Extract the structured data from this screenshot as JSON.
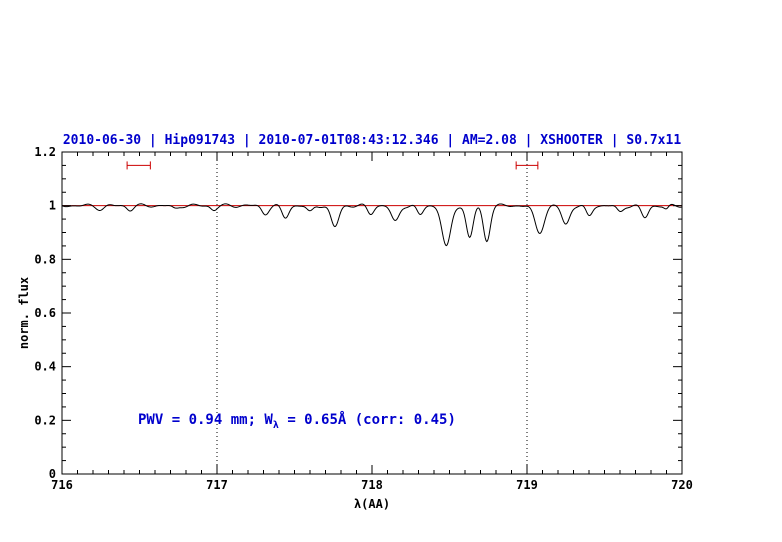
{
  "chart_data": {
    "type": "line",
    "title": "2010-06-30 | Hip091743 | 2010-07-01T08:43:12.346 | AM=2.08 | XSHOOTER | S0.7x11",
    "title_color": "#0000cd",
    "xlabel": "λ(AA)",
    "ylabel": "norm. flux",
    "xlim": [
      716,
      720
    ],
    "ylim": [
      0,
      1.2
    ],
    "x_ticks": [
      716,
      717,
      718,
      719,
      720
    ],
    "y_ticks": [
      0,
      0.2,
      0.4,
      0.6,
      0.8,
      1,
      1.2
    ],
    "x_minor_step": 0.1,
    "y_minor_step": 0.05,
    "grid": "off",
    "legend": "none",
    "continuum_line": {
      "y": 1.0,
      "color": "#cc0000"
    },
    "vlines": [
      {
        "x": 717
      },
      {
        "x": 719
      }
    ],
    "markers": {
      "color": "#cc0000",
      "y": 1.15,
      "ranges": [
        {
          "x1": 716.42,
          "x2": 716.57
        },
        {
          "x1": 718.93,
          "x2": 719.07
        }
      ]
    },
    "annotation": {
      "pre": "PWV = 0.94 mm; W",
      "sub": "λ",
      "post": " = 0.65Å (corr: 0.45)"
    },
    "spectrum": {
      "color": "#000000",
      "continuum": 1.0,
      "sample_step": 0.005,
      "absorption_lines": [
        {
          "c": 716.25,
          "d": 0.012,
          "w": 0.025
        },
        {
          "c": 716.44,
          "d": 0.015,
          "w": 0.02
        },
        {
          "c": 716.73,
          "d": 0.012,
          "w": 0.02
        },
        {
          "c": 716.98,
          "d": 0.015,
          "w": 0.02
        },
        {
          "c": 717.31,
          "d": 0.03,
          "w": 0.022
        },
        {
          "c": 717.44,
          "d": 0.045,
          "w": 0.022
        },
        {
          "c": 717.6,
          "d": 0.025,
          "w": 0.02
        },
        {
          "c": 717.76,
          "d": 0.08,
          "w": 0.025
        },
        {
          "c": 717.99,
          "d": 0.03,
          "w": 0.02
        },
        {
          "c": 718.15,
          "d": 0.06,
          "w": 0.025
        },
        {
          "c": 718.31,
          "d": 0.035,
          "w": 0.02
        },
        {
          "c": 718.48,
          "d": 0.155,
          "w": 0.028
        },
        {
          "c": 718.63,
          "d": 0.12,
          "w": 0.022
        },
        {
          "c": 718.74,
          "d": 0.13,
          "w": 0.022
        },
        {
          "c": 719.08,
          "d": 0.1,
          "w": 0.03
        },
        {
          "c": 719.25,
          "d": 0.07,
          "w": 0.025
        },
        {
          "c": 719.4,
          "d": 0.04,
          "w": 0.02
        },
        {
          "c": 719.6,
          "d": 0.025,
          "w": 0.02
        },
        {
          "c": 719.76,
          "d": 0.045,
          "w": 0.022
        },
        {
          "c": 719.9,
          "d": 0.015,
          "w": 0.015
        }
      ],
      "noise": [
        {
          "a": 0.004,
          "f": 35,
          "p": 0.0
        },
        {
          "a": 0.003,
          "f": 57,
          "p": 1.3
        }
      ]
    }
  }
}
